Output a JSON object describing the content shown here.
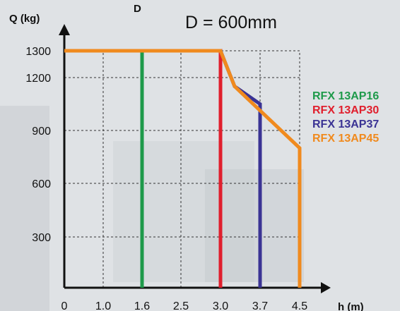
{
  "chart_data": {
    "type": "line",
    "title": "D = 600mm",
    "subtitle": "D",
    "xlabel": "h (m)",
    "ylabel": "Q (kg)",
    "x_ticks": [
      "0",
      "1.0",
      "1.6",
      "2.5",
      "3.0",
      "3.7",
      "4.5"
    ],
    "y_ticks": [
      "1300",
      "1200",
      "900",
      "600",
      "300"
    ],
    "x_tick_values": [
      0,
      1.0,
      1.6,
      2.5,
      3.0,
      3.7,
      4.5
    ],
    "y_tick_values": [
      1300,
      1200,
      900,
      600,
      300
    ],
    "grid": true,
    "legend_position": "right",
    "series": [
      {
        "name": "RFX 13AP16",
        "color": "#1e9a4a",
        "points": [
          [
            0,
            1300
          ],
          [
            1.6,
            1300
          ],
          [
            1.6,
            0
          ]
        ]
      },
      {
        "name": "RFX 13AP30",
        "color": "#e01f2d",
        "points": [
          [
            0,
            1300
          ],
          [
            3.0,
            1300
          ],
          [
            3.0,
            0
          ]
        ]
      },
      {
        "name": "RFX 13AP37",
        "color": "#3a3394",
        "points": [
          [
            0,
            1300
          ],
          [
            3.0,
            1300
          ],
          [
            3.25,
            1150
          ],
          [
            3.7,
            1050
          ],
          [
            3.7,
            0
          ]
        ]
      },
      {
        "name": "RFX 13AP45",
        "color": "#f08a1e",
        "points": [
          [
            0,
            1300
          ],
          [
            3.0,
            1300
          ],
          [
            3.25,
            1150
          ],
          [
            4.5,
            800
          ],
          [
            4.5,
            0
          ]
        ]
      }
    ]
  }
}
